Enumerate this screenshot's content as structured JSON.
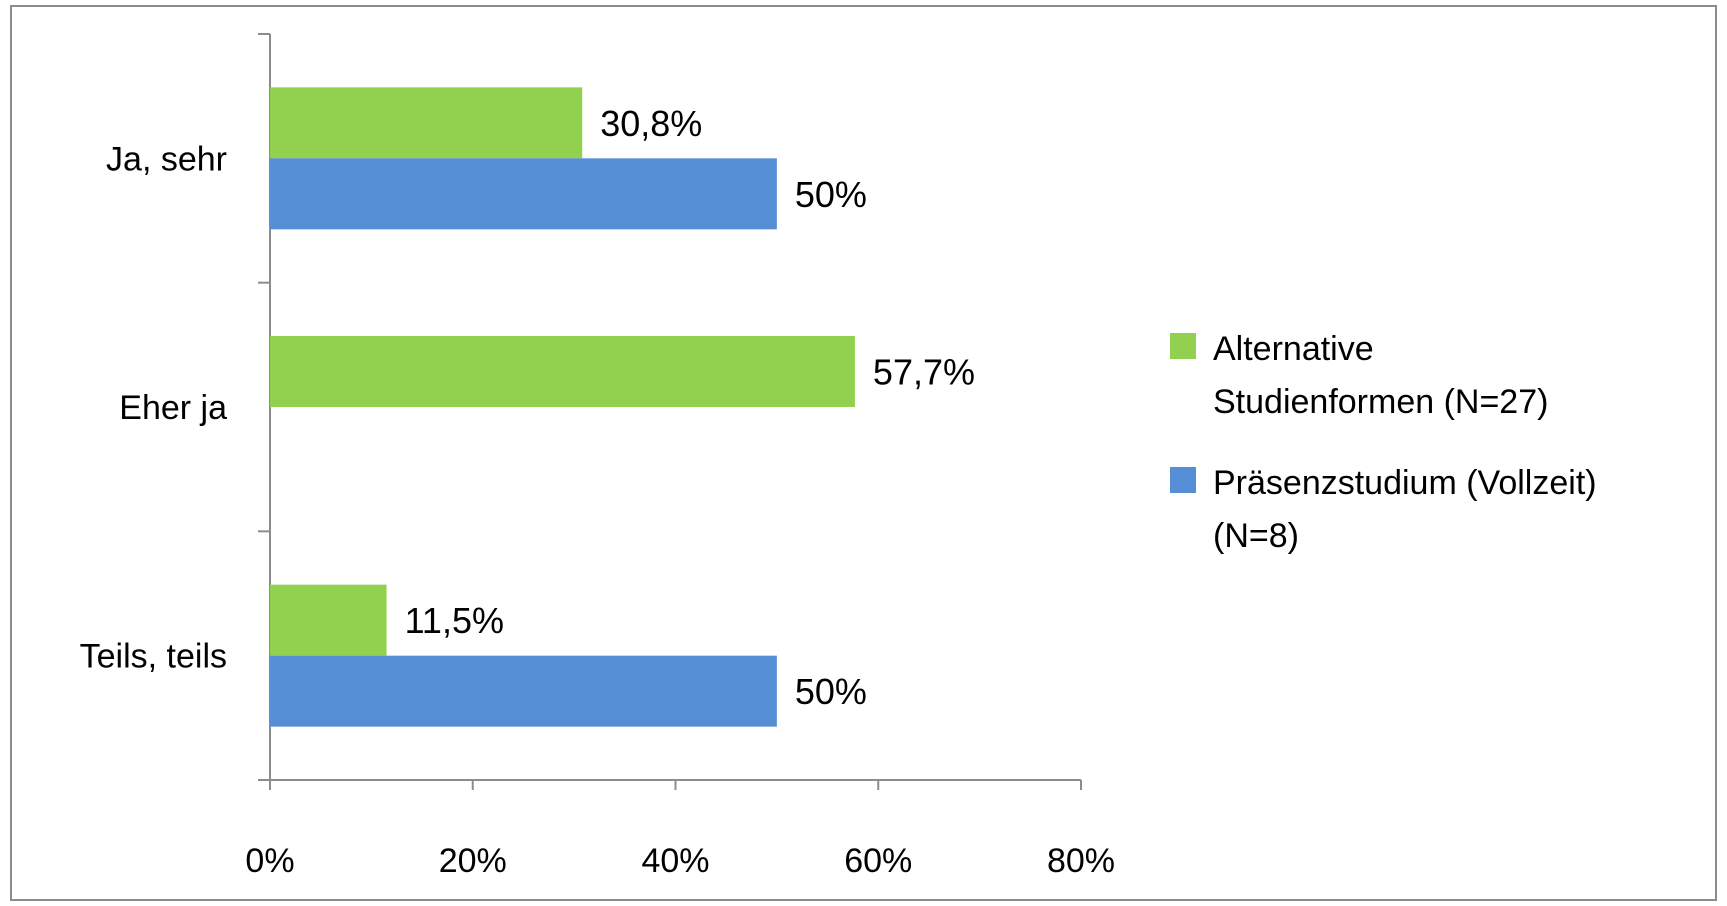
{
  "chart_data": {
    "type": "bar",
    "orientation": "horizontal",
    "categories": [
      "Ja, sehr",
      "Eher ja",
      "Teils, teils"
    ],
    "series": [
      {
        "name": "Alternative Studienformen (N=27)",
        "name_lines": [
          "Alternative",
          "Studienformen (N=27)"
        ],
        "color": "#92D050",
        "values": [
          30.8,
          57.7,
          11.5
        ],
        "labels": [
          "30,8%",
          "57,7%",
          "11,5%"
        ]
      },
      {
        "name": "Präsenzstudium (Vollzeit) (N=8)",
        "name_lines": [
          "Präsenzstudium (Vollzeit)",
          "(N=8)"
        ],
        "color": "#558ED5",
        "values": [
          50,
          null,
          50
        ],
        "labels": [
          "50%",
          "",
          "50%"
        ]
      }
    ],
    "xlim": [
      0,
      80
    ],
    "xticks": [
      0,
      20,
      40,
      60,
      80
    ],
    "xtick_labels": [
      "0%",
      "20%",
      "40%",
      "60%",
      "80%"
    ],
    "grid": false,
    "legend_position": "right",
    "title": "",
    "xlabel": "",
    "ylabel": ""
  }
}
